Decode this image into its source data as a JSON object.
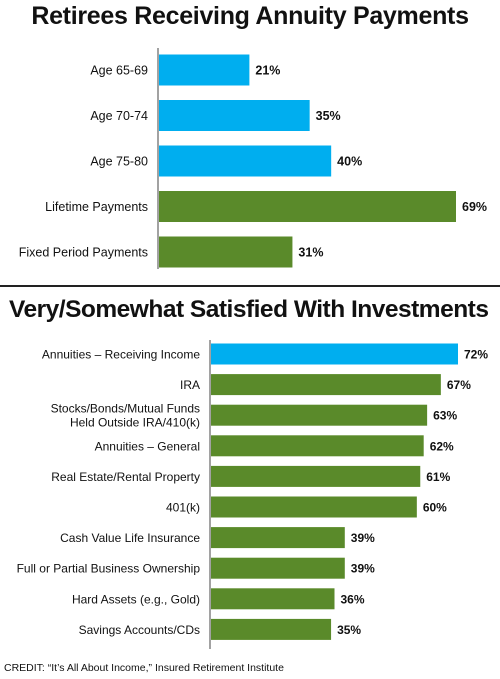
{
  "chart_data": [
    {
      "type": "bar",
      "orientation": "horizontal",
      "title": "Retirees Receiving Annuity Payments",
      "categories": [
        "Age 65-69",
        "Age 70-74",
        "Age 75-80",
        "Lifetime Payments",
        "Fixed Period Payments"
      ],
      "values": [
        21,
        35,
        40,
        69,
        31
      ],
      "value_labels": [
        "21%",
        "35%",
        "40%",
        "69%",
        "31%"
      ],
      "colors": [
        "#00aeef",
        "#00aeef",
        "#00aeef",
        "#5a8a2a",
        "#5a8a2a"
      ],
      "xlim": [
        0,
        69
      ]
    },
    {
      "type": "bar",
      "orientation": "horizontal",
      "title": "Very/Somewhat Satisfied With Investments",
      "categories": [
        [
          "Annuities – Receiving Income"
        ],
        [
          "IRA"
        ],
        [
          "Stocks/Bonds/Mutual Funds",
          "Held Outside IRA/410(k)"
        ],
        [
          "Annuities – General"
        ],
        [
          "Real Estate/Rental Property"
        ],
        [
          "401(k)"
        ],
        [
          "Cash Value Life Insurance"
        ],
        [
          "Full or Partial Business Ownership"
        ],
        [
          "Hard Assets (e.g., Gold)"
        ],
        [
          "Savings Accounts/CDs"
        ]
      ],
      "values": [
        72,
        67,
        63,
        62,
        61,
        60,
        39,
        39,
        36,
        35
      ],
      "value_labels": [
        "72%",
        "67%",
        "63%",
        "62%",
        "61%",
        "60%",
        "39%",
        "39%",
        "36%",
        "35%"
      ],
      "colors": [
        "#00aeef",
        "#5a8a2a",
        "#5a8a2a",
        "#5a8a2a",
        "#5a8a2a",
        "#5a8a2a",
        "#5a8a2a",
        "#5a8a2a",
        "#5a8a2a",
        "#5a8a2a"
      ],
      "xlim": [
        0,
        72
      ]
    }
  ],
  "credit": "CREDIT: “It’s All About Income,” Insured Retirement Institute"
}
